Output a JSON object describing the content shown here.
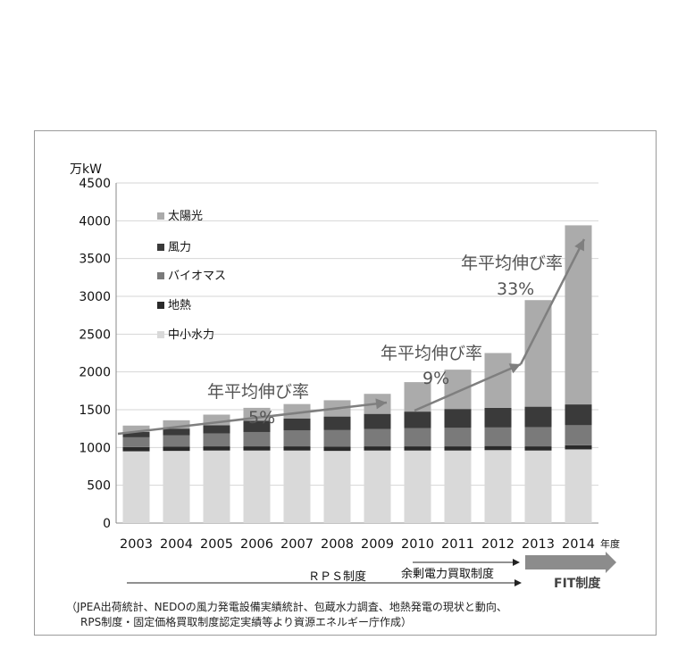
{
  "colors": {
    "solar": "#ababab",
    "wind": "#3a3a3a",
    "biomass": "#7a7a7a",
    "geothermal": "#2a2a2a",
    "hydro": "#d9d9d9",
    "arrow": "#7f7f7f",
    "fit_arrow": "#8c8c8c"
  },
  "chart_data": {
    "type": "bar",
    "stacked": true,
    "unit_label": "万kW",
    "year_suffix": "年度",
    "categories": [
      "2003",
      "2004",
      "2005",
      "2006",
      "2007",
      "2008",
      "2009",
      "2010",
      "2011",
      "2012",
      "2013",
      "2014"
    ],
    "series": [
      {
        "name": "中小水力",
        "color_key": "hydro",
        "values": [
          950,
          955,
          960,
          960,
          960,
          955,
          960,
          960,
          960,
          965,
          960,
          975
        ]
      },
      {
        "name": "地熱",
        "color_key": "geothermal",
        "values": [
          55,
          55,
          55,
          55,
          55,
          55,
          55,
          55,
          55,
          55,
          55,
          55
        ]
      },
      {
        "name": "バイオマス",
        "color_key": "biomass",
        "values": [
          130,
          150,
          170,
          190,
          210,
          220,
          230,
          240,
          245,
          245,
          255,
          265
        ]
      },
      {
        "name": "風力",
        "color_key": "wind",
        "values": [
          70,
          90,
          110,
          150,
          160,
          180,
          200,
          220,
          250,
          260,
          270,
          275
        ]
      },
      {
        "name": "太陽光",
        "color_key": "solar",
        "values": [
          85,
          110,
          140,
          170,
          190,
          215,
          265,
          390,
          520,
          725,
          1410,
          2370
        ]
      }
    ],
    "ylim": [
      0,
      4500
    ],
    "yticks": [
      0,
      500,
      1000,
      1500,
      2000,
      2500,
      3000,
      3500,
      4000,
      4500
    ],
    "grid": true,
    "legend_position": "top-left",
    "legend_order": [
      "太陽光",
      "風力",
      "バイオマス",
      "地熱",
      "中小水力"
    ],
    "annotations": {
      "growth_1": {
        "label": "年平均伸び率",
        "rate": "5%"
      },
      "growth_2": {
        "label": "年平均伸び率",
        "rate": "9%"
      },
      "growth_3": {
        "label": "年平均伸び率",
        "rate": "33%"
      }
    }
  },
  "policy": {
    "rps": "ＲＰＳ制度",
    "surplus": "余剰電力買取制度",
    "fit": "FIT制度"
  },
  "source": {
    "line1": "（JPEA出荷統計、NEDOの風力発電設備実績統計、包蔵水力調査、地熱発電の現状と動向、",
    "line2": "RPS制度・固定価格買取制度認定実績等より資源エネルギー庁作成）"
  }
}
